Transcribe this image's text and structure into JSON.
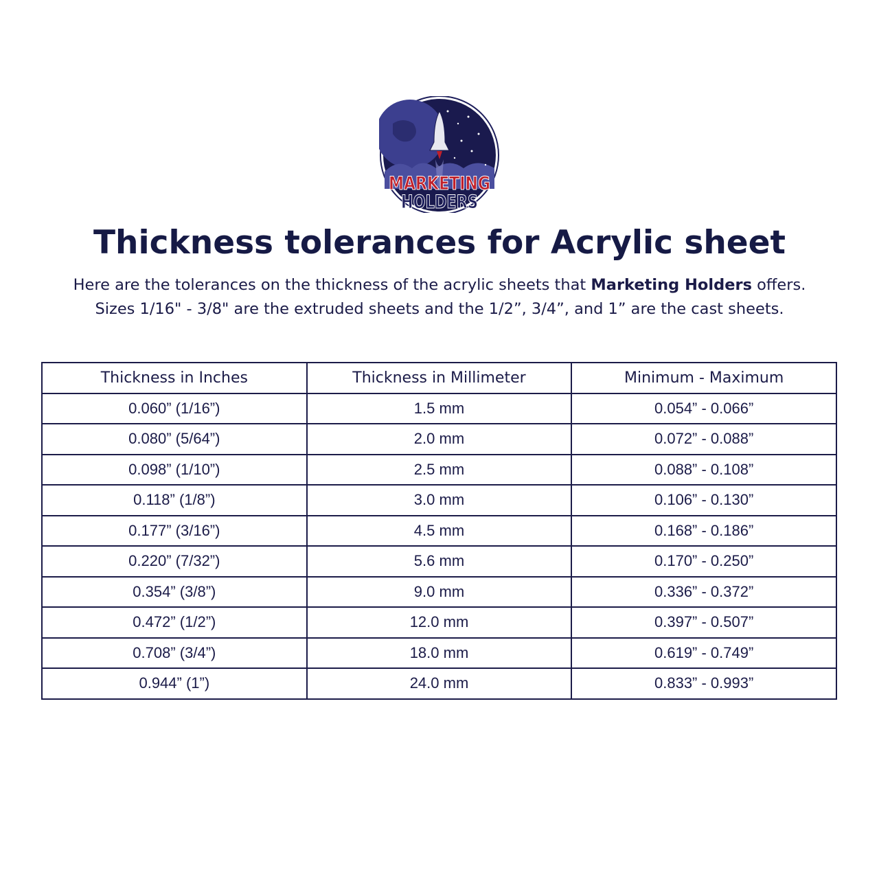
{
  "logo": {
    "line1": "MARKETING",
    "line2": "HOLDERS",
    "colors": {
      "navy": "#1e1f5c",
      "red": "#c0202a"
    }
  },
  "title": "Thickness tolerances for Acrylic sheet",
  "intro": {
    "line1_pre": "Here are the tolerances on the thickness of the acrylic sheets that ",
    "line1_brand": "Marketing Holders",
    "line1_post": " offers.",
    "line2": "Sizes 1/16\" - 3/8\" are the extruded sheets and the 1/2”, 3/4”, and 1” are the cast sheets."
  },
  "table": {
    "headers": [
      "Thickness in Inches",
      "Thickness in Millimeter",
      "Minimum - Maximum"
    ],
    "rows": [
      [
        "0.060” (1/16”)",
        "1.5 mm",
        "0.054” - 0.066”"
      ],
      [
        "0.080” (5/64”)",
        "2.0 mm",
        "0.072” - 0.088”"
      ],
      [
        "0.098” (1/10”)",
        "2.5 mm",
        "0.088” - 0.108”"
      ],
      [
        "0.118” (1/8”)",
        "3.0 mm",
        "0.106” - 0.130”"
      ],
      [
        "0.177” (3/16”)",
        "4.5 mm",
        "0.168” - 0.186”"
      ],
      [
        "0.220” (7/32”)",
        "5.6 mm",
        "0.170” - 0.250”"
      ],
      [
        "0.354” (3/8”)",
        "9.0 mm",
        "0.336” - 0.372”"
      ],
      [
        "0.472” (1/2”)",
        "12.0 mm",
        "0.397” - 0.507”"
      ],
      [
        "0.708” (3/4”)",
        "18.0 mm",
        "0.619” - 0.749”"
      ],
      [
        "0.944” (1”)",
        "24.0 mm",
        "0.833” - 0.993”"
      ]
    ]
  }
}
